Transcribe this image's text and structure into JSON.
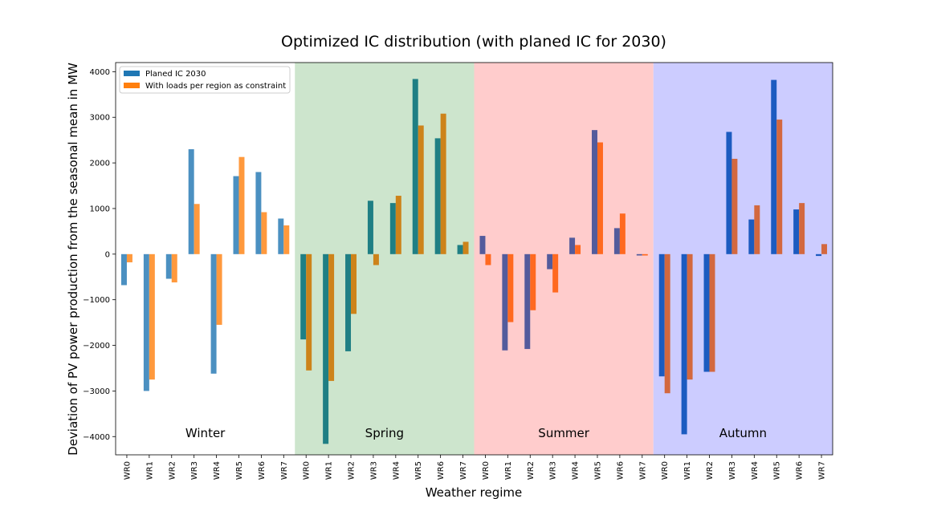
{
  "chart_data": {
    "type": "bar",
    "title": "Optimized IC distribution (with planed IC for 2030)",
    "xlabel": "Weather regime",
    "ylabel": "Deviation of PV power production from the seasonal mean in MW",
    "ylim": [
      -4400,
      4200
    ],
    "yticks": [
      -4000,
      -3000,
      -2000,
      -1000,
      0,
      1000,
      2000,
      3000,
      4000
    ],
    "legend_position": "top-left",
    "grid": false,
    "categories": [
      "WR0",
      "WR1",
      "WR2",
      "WR3",
      "WR4",
      "WR5",
      "WR6",
      "WR7",
      "WR0",
      "WR1",
      "WR2",
      "WR3",
      "WR4",
      "WR5",
      "WR6",
      "WR7",
      "WR0",
      "WR1",
      "WR2",
      "WR3",
      "WR4",
      "WR5",
      "WR6",
      "WR7",
      "WR0",
      "WR1",
      "WR2",
      "WR3",
      "WR4",
      "WR5",
      "WR6",
      "WR7"
    ],
    "series": [
      {
        "name": "Planed IC 2030",
        "values": [
          -680,
          -3000,
          -540,
          2300,
          -2620,
          1710,
          1800,
          780,
          -1870,
          -4160,
          -2130,
          1170,
          1120,
          3840,
          2540,
          200,
          400,
          -2110,
          -2080,
          -330,
          360,
          2720,
          570,
          -30,
          -2680,
          -3950,
          -2580,
          2680,
          760,
          3820,
          980,
          -40
        ]
      },
      {
        "name": "With loads per region as constraint",
        "values": [
          -180,
          -2750,
          -620,
          1100,
          -1550,
          2130,
          920,
          630,
          -2550,
          -2780,
          -1310,
          -240,
          1280,
          2820,
          3080,
          270,
          -240,
          -1490,
          -1230,
          -840,
          200,
          2450,
          890,
          -30,
          -3050,
          -2750,
          -2580,
          2090,
          1070,
          2950,
          1120,
          220
        ]
      }
    ],
    "seasons": [
      {
        "name": "Winter",
        "bg": "#ffffff",
        "c1": "#4b90c1",
        "c2": "#ff993d"
      },
      {
        "name": "Spring",
        "bg": "#cde5cd",
        "c1": "#1f7f84",
        "c2": "#cd831a"
      },
      {
        "name": "Summer",
        "bg": "#ffcccc",
        "c1": "#535b9c",
        "c2": "#ff6920"
      },
      {
        "name": "Autumn",
        "bg": "#ccccff",
        "c1": "#1c5bc0",
        "c2": "#d3683f"
      }
    ],
    "legend_colors": [
      "#1f77b4",
      "#ff7f0e"
    ]
  }
}
